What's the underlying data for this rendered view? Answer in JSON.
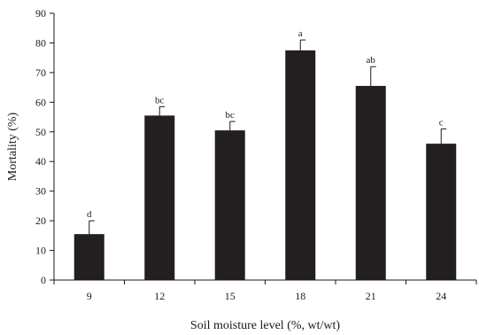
{
  "chart_data": {
    "type": "bar",
    "title": "",
    "xlabel": "Soil moisture level (%, wt/wt)",
    "ylabel": "Mortality (%)",
    "ylim": [
      0,
      90
    ],
    "yticks": [
      0,
      10,
      20,
      30,
      40,
      50,
      60,
      70,
      80,
      90
    ],
    "categories": [
      "9",
      "12",
      "15",
      "18",
      "21",
      "24"
    ],
    "values": [
      15.5,
      55.5,
      50.5,
      77.5,
      65.5,
      46
    ],
    "error_upper": [
      4.5,
      3,
      3,
      3.5,
      6.5,
      5
    ],
    "significance_letters": [
      "d",
      "bc",
      "bc",
      "a",
      "ab",
      "c"
    ],
    "bar_color": "#231f20",
    "grid": false,
    "legend": "none"
  }
}
